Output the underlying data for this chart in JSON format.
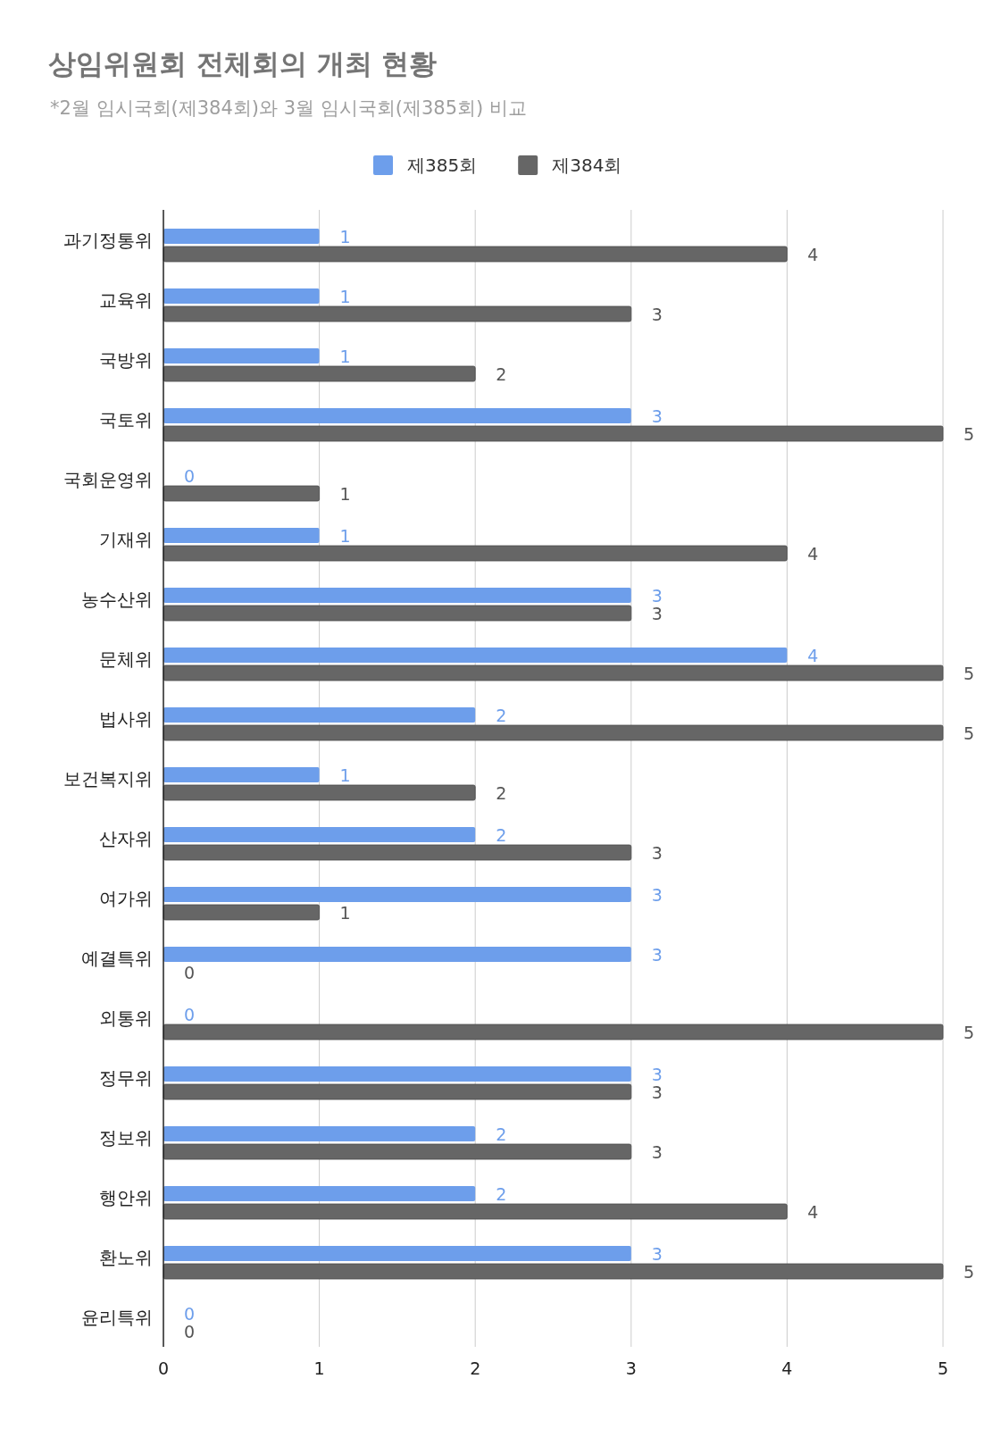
{
  "chart_data": {
    "type": "bar",
    "orientation": "horizontal",
    "title": "상임위원회 전체회의 개최 현황",
    "subtitle": "*2월 임시국회(제384회)와 3월 임시국회(제385회) 비교",
    "categories": [
      "과기정통위",
      "교육위",
      "국방위",
      "국토위",
      "국회운영위",
      "기재위",
      "농수산위",
      "문체위",
      "법사위",
      "보건복지위",
      "산자위",
      "여가위",
      "예결특위",
      "외통위",
      "정무위",
      "정보위",
      "행안위",
      "환노위",
      "윤리특위"
    ],
    "series": [
      {
        "name": "제385회",
        "color": "#6d9eeb",
        "values": [
          1,
          1,
          1,
          3,
          0,
          1,
          3,
          4,
          2,
          1,
          2,
          3,
          3,
          0,
          3,
          2,
          2,
          3,
          0
        ]
      },
      {
        "name": "제384회",
        "color": "#666666",
        "values": [
          4,
          3,
          2,
          5,
          1,
          4,
          3,
          5,
          5,
          2,
          3,
          1,
          0,
          5,
          3,
          3,
          4,
          5,
          0
        ]
      }
    ],
    "xlim": [
      0,
      5
    ],
    "xticks": [
      0,
      1,
      2,
      3,
      4,
      5
    ],
    "grid": "x",
    "legend": "top",
    "data_labels": true
  }
}
